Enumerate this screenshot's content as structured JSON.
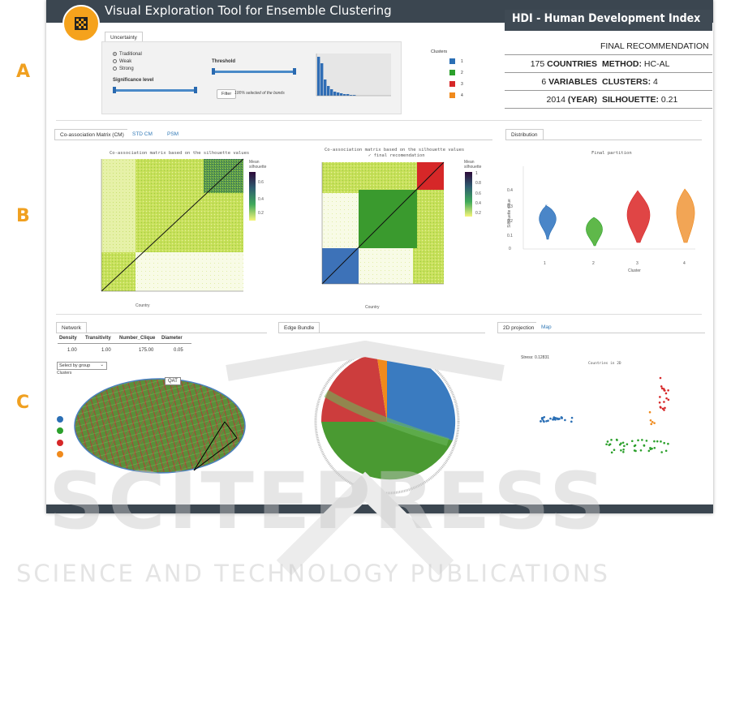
{
  "app": {
    "title": "Visual Exploration Tool for Ensemble Clustering"
  },
  "section_labels": [
    "A",
    "B",
    "C"
  ],
  "hdi": {
    "title": "HDI - Human Development Index",
    "final_header": "FINAL RECOMMENDATION",
    "rows": [
      {
        "left_value": "175",
        "left_label": "COUNTRIES",
        "right_label": "METHOD:",
        "right_value": "HC-AL"
      },
      {
        "left_value": "6",
        "left_label": "VARIABLES",
        "right_label": "CLUSTERS:",
        "right_value": "4"
      },
      {
        "left_value": "2014",
        "left_label": "(YEAR)",
        "right_label": "SILHOUETTE:",
        "right_value": "0.21"
      }
    ]
  },
  "uncertainty": {
    "tab": "Uncertainty",
    "options": [
      "Traditional",
      "Weak",
      "Strong"
    ],
    "selected": "Traditional",
    "threshold_label": "Threshold",
    "significance_label": "Significance level",
    "button": "Filter",
    "status": "100% selected of the bonds"
  },
  "clusters_legend": {
    "title": "Clusters",
    "items": [
      {
        "label": "1",
        "color": "#2b6fb5"
      },
      {
        "label": "2",
        "color": "#2ca02c"
      },
      {
        "label": "3",
        "color": "#d62728"
      },
      {
        "label": "4",
        "color": "#f08a1c"
      }
    ]
  },
  "section_b": {
    "tabs": [
      "Co-association Matrix (CM)",
      "STD CM",
      "PSM"
    ],
    "cm_title": "Co-association matrix based on the silhouette values",
    "cm_final_title": "Co-association matrix based on the silhouette values",
    "cm_final_subtitle": "final recomendation",
    "colorbar_title": "Mean silhouette",
    "colorbar_ticks": [
      "1",
      "0.8",
      "0.6",
      "0.4",
      "0.2"
    ],
    "axis_label": "Country",
    "distribution_tab": "Distribution",
    "distribution_title": "Final partition",
    "distribution_ylabel": "Silhouette value",
    "distribution_xlabel": "Cluster",
    "distribution_yticks": [
      "0.4",
      "0.3",
      "0.2",
      "0.1",
      "0"
    ],
    "distribution_xticks": [
      "1",
      "2",
      "3",
      "4"
    ]
  },
  "section_c": {
    "network_tab": "Network",
    "network_headers": [
      "Density",
      "Transitivity",
      "Number_Clique",
      "Diameter"
    ],
    "network_values": [
      "1.00",
      "1.00",
      "175.00",
      "0.05"
    ],
    "select_label": "Select by group",
    "clusters_label": "Clusters",
    "node_tooltip": "QAT",
    "edge_bundle_tab": "Edge Bundle",
    "projection_tabs": [
      "2D projection",
      "Map"
    ],
    "stress_label": "Stress:",
    "stress_value": "0.12831",
    "projection_title": "Countries in 2D"
  },
  "watermark": {
    "line1": "SCITEPRESS",
    "line2": "SCIENCE AND TECHNOLOGY PUBLICATIONS"
  }
}
